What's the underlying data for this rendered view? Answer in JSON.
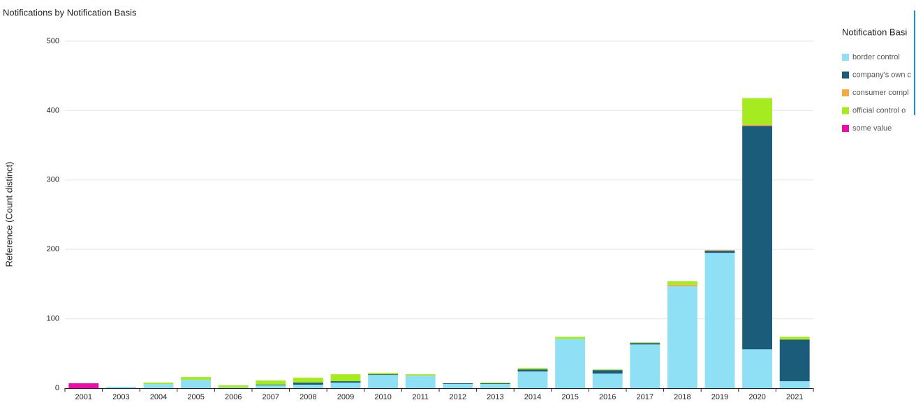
{
  "chart_data": {
    "type": "stacked_bar",
    "title": "Notifications by Notification Basis",
    "y_label": "Reference (Count distinct)",
    "legend_title": "Notification Basi",
    "legend_position": "right",
    "grid": true,
    "categories": [
      "2001",
      "2003",
      "2004",
      "2005",
      "2006",
      "2007",
      "2008",
      "2009",
      "2010",
      "2011",
      "2012",
      "2013",
      "2014",
      "2015",
      "2016",
      "2017",
      "2018",
      "2019",
      "2020",
      "2021"
    ],
    "ylim": [
      0,
      500
    ],
    "yticks": [
      0,
      100,
      200,
      300,
      400,
      500
    ],
    "series": [
      {
        "name": "border control",
        "color": "#8fe0f5",
        "values": [
          0,
          2,
          6,
          12,
          1,
          4,
          5,
          8,
          19,
          18,
          6,
          6,
          24,
          71,
          21,
          63,
          147,
          195,
          56,
          10
        ]
      },
      {
        "name": "company's own c",
        "color": "#1b5c7a",
        "values": [
          0,
          0,
          0,
          0,
          0,
          1,
          3,
          2,
          1,
          0,
          1,
          1,
          3,
          0,
          5,
          2,
          0,
          3,
          322,
          60
        ]
      },
      {
        "name": "consumer compl",
        "color": "#f5a742",
        "values": [
          0,
          0,
          0,
          0,
          0,
          0,
          0,
          0,
          0,
          0,
          0,
          0,
          0,
          0,
          0,
          0,
          2,
          1,
          2,
          0
        ]
      },
      {
        "name": "official control o",
        "color": "#a6eb1f",
        "values": [
          0,
          0,
          2,
          4,
          3,
          6,
          7,
          10,
          2,
          2,
          0,
          1,
          2,
          3,
          1,
          1,
          5,
          0,
          38,
          4
        ]
      },
      {
        "name": "some value",
        "color": "#f00ba8",
        "values": [
          7,
          0,
          0,
          0,
          0,
          0,
          0,
          0,
          0,
          0,
          0,
          0,
          0,
          0,
          0,
          0,
          0,
          0,
          0,
          0
        ]
      }
    ]
  }
}
